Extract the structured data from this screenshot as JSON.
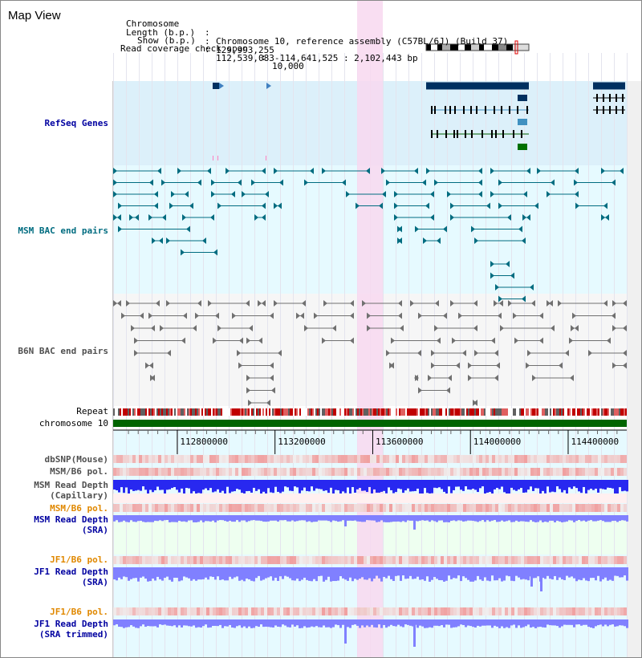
{
  "map_title": "Map View",
  "info": {
    "chromosome_label": "Chromosome",
    "chromosome_value": "Chromosome 10, reference assembly (C57BL/6J) (Build 37)",
    "length_label": "Length (b.p.)",
    "length_value": "129,993,255",
    "show_label": "Show (b.p.)",
    "show_value": "112,539,083-114,641,525 : 2,102,443 bp",
    "coverage_label": "Read coverage check span",
    "coverage_value": "10,000"
  },
  "tracks": {
    "refseq": "RefSeq Genes",
    "msm_bac": "MSM BAC end pairs",
    "b6n_bac": "B6N BAC end pairs",
    "repeat": "Repeat",
    "chromosome": "chromosome 10",
    "dbsnp": "dbSNP(Mouse)",
    "msm_b6_pol_1": "MSM/B6 pol.",
    "msm_read_depth_cap_1": "MSM Read Depth",
    "msm_read_depth_cap_2": "(Capillary)",
    "msm_b6_pol_2": "MSM/B6 pol.",
    "msm_read_depth_sra_1": "MSM Read Depth",
    "msm_read_depth_sra_2": "(SRA)",
    "jf1_b6_pol_1": "JF1/B6 pol.",
    "jf1_read_depth_sra_1": "JF1 Read Depth",
    "jf1_read_depth_sra_2": "(SRA)",
    "jf1_b6_pol_2": "JF1/B6 pol.",
    "jf1_read_depth_trim_1": "JF1 Read Depth",
    "jf1_read_depth_trim_2": "(SRA trimmed)"
  },
  "axis": {
    "ticks": [
      {
        "value": 112800000,
        "label": "112800000"
      },
      {
        "value": 113200000,
        "label": "113200000"
      },
      {
        "value": 113600000,
        "label": "113600000"
      },
      {
        "value": 114000000,
        "label": "114000000"
      },
      {
        "value": 114400000,
        "label": "114400000"
      }
    ],
    "start": 112539083,
    "end": 114641525
  },
  "colors": {
    "refseq_bg": "#dcf0fa",
    "bac_bg": "#e6faff",
    "highlight": "#f8d8f0",
    "gene_dark": "#003060",
    "msm_bac": "#006c80",
    "b6n_bac": "#707070",
    "chromosome_bar": "#006400",
    "depth_blue": "#2828f0",
    "depth_light": "#8080ff",
    "pol_red": "#f06060"
  },
  "icons": {
    "ideogram": "chromosome-ideogram-icon"
  }
}
